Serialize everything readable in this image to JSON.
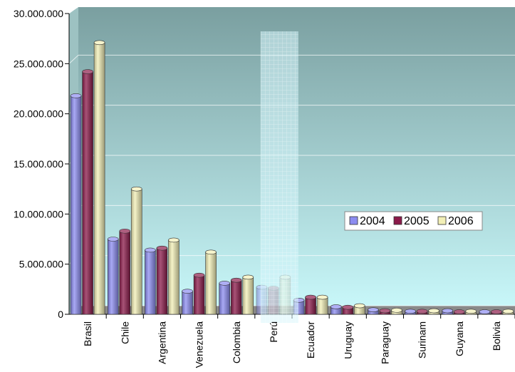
{
  "chart_data": {
    "type": "bar",
    "categories": [
      "Brasil",
      "Chile",
      "Argentina",
      "Venezuela",
      "Colombia",
      "Perú",
      "Ecuador",
      "Uruguay",
      "Paraguay",
      "Surinam",
      "Guyana",
      "Bolivia"
    ],
    "series": [
      {
        "name": "2004",
        "color": "#8c8cf0",
        "values": [
          21800000,
          7500000,
          6400000,
          2300000,
          3100000,
          2700000,
          1400000,
          750000,
          450000,
          300000,
          350000,
          250000
        ]
      },
      {
        "name": "2005",
        "color": "#8b1a4a",
        "values": [
          24200000,
          8300000,
          6600000,
          3900000,
          3400000,
          2600000,
          1700000,
          700000,
          350000,
          300000,
          250000,
          250000
        ]
      },
      {
        "name": "2006",
        "color": "#f2efb6",
        "values": [
          27100000,
          12500000,
          7400000,
          6200000,
          3700000,
          3700000,
          1700000,
          850000,
          400000,
          350000,
          300000,
          300000
        ]
      }
    ],
    "y_ticks": [
      "0",
      "5.000.000",
      "10.000.000",
      "15.000.000",
      "20.000.000",
      "25.000.000",
      "30.000.000"
    ],
    "ylim": [
      0,
      30000000
    ],
    "grid": true,
    "legend_position": "right",
    "highlight_category": "Perú",
    "background_gradient": [
      "#7a9fa0",
      "#c8f7f9"
    ]
  }
}
